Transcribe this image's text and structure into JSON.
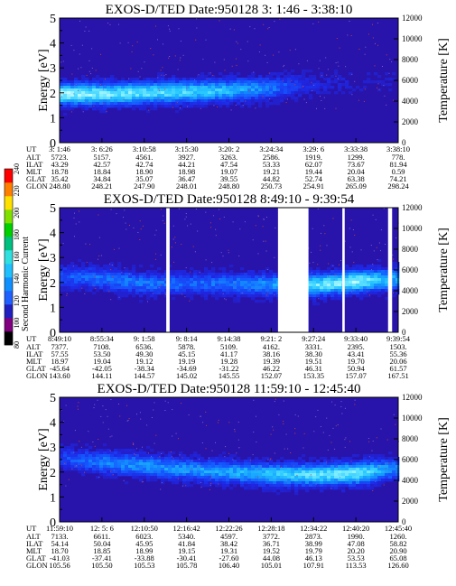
{
  "colorbar": {
    "label": "Second Harmonic Current",
    "ticks": [
      "80",
      "100",
      "120",
      "140",
      "160",
      "180",
      "200",
      "220",
      "240"
    ],
    "colors": [
      "#000000",
      "#800080",
      "#2020c0",
      "#2060ff",
      "#1090ff",
      "#20c0ff",
      "#30e0e0",
      "#00c080",
      "#00d000",
      "#80e000",
      "#ffe000",
      "#ff8000",
      "#ff0000"
    ]
  },
  "chart_data": [
    {
      "type": "heatmap",
      "title": "EXOS-D/TED   Date:950128   3: 1:46 - 3:38:10",
      "ylabel": "Energy [eV]",
      "ylabel_right": "Temperature [K]",
      "ylim": [
        0,
        5
      ],
      "y_ticks": [
        "0",
        "1",
        "2",
        "3",
        "4",
        "5"
      ],
      "right_ylim": [
        0,
        12000
      ],
      "right_ticks": [
        "0",
        "2000",
        "4000",
        "6000",
        "8000",
        "10000",
        "12000"
      ],
      "gaps": [],
      "band": {
        "center_ev": [
          2.0,
          2.0,
          2.05,
          2.1,
          2.15,
          2.25,
          2.4,
          2.5,
          2.5
        ],
        "strength": [
          0.95,
          0.9,
          0.85,
          0.8,
          0.7,
          0.5,
          0.2,
          0.1,
          0.1
        ]
      },
      "orbit_rows": [
        "UT",
        "ALT",
        "ILAT",
        "MLT",
        "GLAT",
        "GLON"
      ],
      "orbit": [
        [
          "3: 1:46",
          "3: 6:26",
          "3:10:58",
          "3:15:30",
          "3:20: 2",
          "3:24:34",
          "3:29: 6",
          "3:33:38",
          "3:38:10"
        ],
        [
          "5723.",
          "5157.",
          "4561.",
          "3927.",
          "3263.",
          "2586.",
          "1919.",
          "1299.",
          "778."
        ],
        [
          "43.29",
          "42.57",
          "42.74",
          "44.21",
          "47.54",
          "53.33",
          "62.07",
          "73.67",
          "81.94"
        ],
        [
          "18.78",
          "18.84",
          "18.90",
          "18.98",
          "19.07",
          "19.21",
          "19.44",
          "20.04",
          "0.59"
        ],
        [
          "35.42",
          "34.84",
          "35.07",
          "36.47",
          "39.55",
          "44.82",
          "52.74",
          "63.38",
          "74.21"
        ],
        [
          "248.80",
          "248.21",
          "247.90",
          "248.01",
          "248.80",
          "250.73",
          "254.91",
          "265.09",
          "298.24"
        ]
      ]
    },
    {
      "type": "heatmap",
      "title": "EXOS-D/TED   Date:950128   8:49:10 - 9:39:54",
      "ylabel": "Energy [eV]",
      "ylabel_right": "Temperature [K]",
      "ylim": [
        0,
        5
      ],
      "y_ticks": [
        "0",
        "1",
        "2",
        "3",
        "4",
        "5"
      ],
      "right_ylim": [
        0,
        12000
      ],
      "right_ticks": [
        "0",
        "2000",
        "4000",
        "6000",
        "8000",
        "10000",
        "12000"
      ],
      "gaps": [
        [
          0.315,
          0.325
        ],
        [
          0.645,
          0.735
        ],
        [
          0.835,
          0.842
        ],
        [
          0.97,
          0.982
        ]
      ],
      "band": {
        "center_ev": [
          2.3,
          2.2,
          2.0,
          2.0,
          2.0,
          1.95,
          1.95,
          2.1,
          2.2
        ],
        "strength": [
          0.4,
          0.5,
          0.5,
          0.45,
          0.5,
          0.6,
          0.85,
          0.95,
          0.6
        ]
      },
      "orbit_rows": [
        "UT",
        "ALT",
        "ILAT",
        "MLT",
        "GLAT",
        "GLON"
      ],
      "orbit": [
        [
          "8:49:10",
          "8:55:34",
          "9: 1:58",
          "9: 8:14",
          "9:14:38",
          "9:21: 2",
          "9:27:24",
          "9:33:40",
          "9:39:54"
        ],
        [
          "7377.",
          "7108.",
          "6536.",
          "5878.",
          "5109.",
          "4162.",
          "3331.",
          "2395.",
          "1503."
        ],
        [
          "57.55",
          "53.50",
          "49.30",
          "45.15",
          "41.17",
          "38.16",
          "38.30",
          "43.41",
          "55.36"
        ],
        [
          "18.97",
          "19.04",
          "19.12",
          "19.19",
          "19.28",
          "19.39",
          "19.51",
          "19.70",
          "20.06"
        ],
        [
          "-45.64",
          "-42.05",
          "-38.34",
          "-34.69",
          "-31.22",
          "46.22",
          "46.31",
          "50.94",
          "61.57"
        ],
        [
          "143.60",
          "144.11",
          "144.57",
          "145.02",
          "145.55",
          "152.07",
          "153.35",
          "157.07",
          "167.51"
        ]
      ]
    },
    {
      "type": "heatmap",
      "title": "EXOS-D/TED   Date:950128   11:59:10 - 12:45:40",
      "ylabel": "Energy [eV]",
      "ylabel_right": "Temperature [K]",
      "ylim": [
        0,
        5
      ],
      "y_ticks": [
        "0",
        "1",
        "2",
        "3",
        "4",
        "5"
      ],
      "right_ylim": [
        0,
        12000
      ],
      "right_ticks": [
        "0",
        "2000",
        "4000",
        "6000",
        "8000",
        "10000",
        "12000"
      ],
      "gaps": [],
      "band": {
        "center_ev": [
          2.6,
          2.45,
          2.3,
          2.15,
          2.05,
          1.95,
          1.95,
          2.0,
          2.2
        ],
        "strength": [
          0.35,
          0.55,
          0.6,
          0.6,
          0.65,
          0.75,
          0.85,
          0.9,
          0.5
        ]
      },
      "orbit_rows": [
        "UT",
        "ALT",
        "ILAT",
        "MLT",
        "GLAT",
        "GLON"
      ],
      "orbit": [
        [
          "11:59:10",
          "12: 5: 6",
          "12:10:50",
          "12:16:42",
          "12:22:26",
          "12:28:18",
          "12:34:22",
          "12:40:20",
          "12:45:40"
        ],
        [
          "7133.",
          "6611.",
          "6023.",
          "5340.",
          "4597.",
          "3772.",
          "2873.",
          "1990.",
          "1260."
        ],
        [
          "54.14",
          "50.04",
          "45.95",
          "41.84",
          "38.42",
          "36.71",
          "38.99",
          "47.08",
          "58.82"
        ],
        [
          "18.70",
          "18.85",
          "18.99",
          "19.15",
          "19.31",
          "19.52",
          "19.79",
          "20.20",
          "20.90"
        ],
        [
          "-41.03",
          "-37.41",
          "-33.88",
          "-30.41",
          "-27.60",
          "44.08",
          "46.13",
          "53.53",
          "65.08"
        ],
        [
          "105.56",
          "105.50",
          "105.53",
          "105.78",
          "106.40",
          "105.01",
          "107.91",
          "113.53",
          "126.60"
        ]
      ]
    }
  ]
}
